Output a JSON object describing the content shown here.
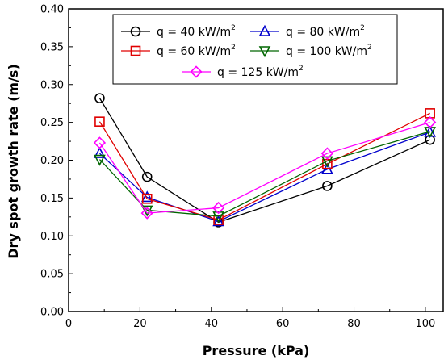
{
  "chart_data": {
    "type": "line",
    "xlabel": "Pressure (kPa)",
    "ylabel": "Dry spot growth rate (m/s)",
    "xlim": [
      0,
      105
    ],
    "ylim": [
      0.0,
      0.4
    ],
    "xticks": [
      0,
      20,
      40,
      60,
      80,
      100
    ],
    "xtick_labels": [
      "0",
      "20",
      "40",
      "60",
      "80",
      "100"
    ],
    "yticks": [
      0.0,
      0.05,
      0.1,
      0.15,
      0.2,
      0.25,
      0.3,
      0.35,
      0.4
    ],
    "ytick_labels": [
      "0.00",
      "0.05",
      "0.10",
      "0.15",
      "0.20",
      "0.25",
      "0.30",
      "0.35",
      "0.40"
    ],
    "grid": false,
    "legend_position": "top",
    "series": [
      {
        "label": "q = 40 kW/m",
        "sup": "2",
        "color": "#000000",
        "marker": "circle",
        "x": [
          8.7,
          22,
          42,
          72.5,
          101.3
        ],
        "y": [
          0.282,
          0.178,
          0.118,
          0.166,
          0.227
        ]
      },
      {
        "label": "q = 80 kW/m",
        "sup": "2",
        "color": "#0000cc",
        "marker": "triangle-up",
        "x": [
          8.7,
          22,
          42,
          72.5,
          101.3
        ],
        "y": [
          0.209,
          0.151,
          0.119,
          0.188,
          0.237
        ]
      },
      {
        "label": "q = 60 kW/m",
        "sup": "2",
        "color": "#e00000",
        "marker": "square",
        "x": [
          8.7,
          22,
          42,
          72.5,
          101.3
        ],
        "y": [
          0.251,
          0.149,
          0.121,
          0.195,
          0.262
        ]
      },
      {
        "label": "q = 100 kW/m",
        "sup": "2",
        "color": "#006600",
        "marker": "triangle-down",
        "x": [
          8.7,
          22,
          42,
          72.5,
          101.3
        ],
        "y": [
          0.201,
          0.134,
          0.126,
          0.199,
          0.238
        ]
      },
      {
        "label": "q = 125 kW/m",
        "sup": "2",
        "color": "#ff00ff",
        "marker": "diamond",
        "x": [
          8.7,
          22,
          42,
          72.5,
          101.3
        ],
        "y": [
          0.223,
          0.13,
          0.137,
          0.209,
          0.25
        ]
      }
    ]
  }
}
